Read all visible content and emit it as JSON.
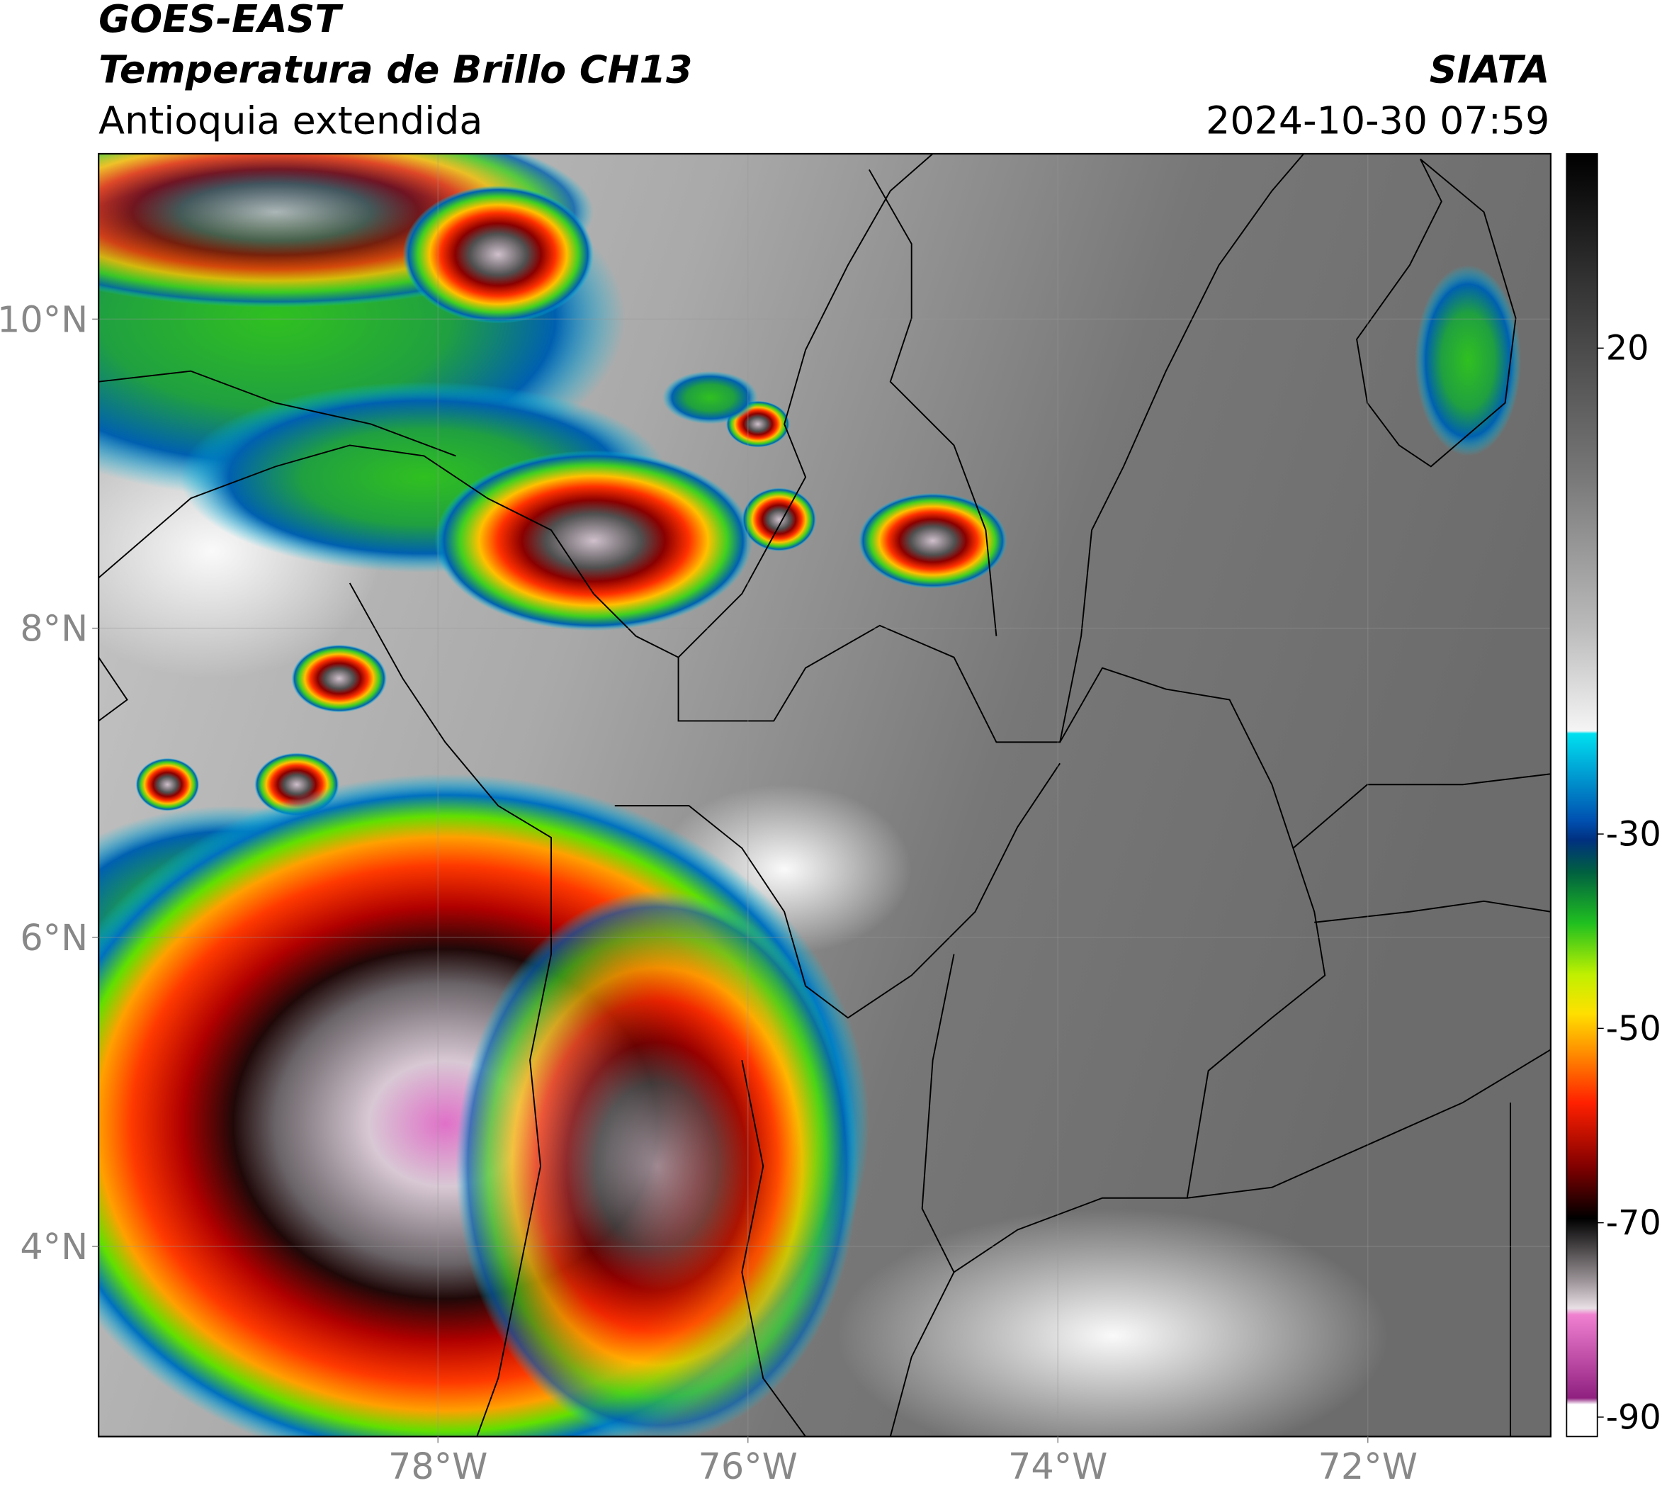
{
  "header": {
    "title": "GOES-EAST",
    "subtitle": "Temperatura de Brillo CH13",
    "region": "Antioquia extendida",
    "source": "SIATA",
    "timestamp": "2024-10-30 07:59"
  },
  "map": {
    "type": "map",
    "xlim": [
      -80.19,
      -70.82
    ],
    "ylim": [
      2.77,
      11.07
    ],
    "xticks": [
      {
        "value": -78,
        "label": "78°W"
      },
      {
        "value": -76,
        "label": "76°W"
      },
      {
        "value": -74,
        "label": "74°W"
      },
      {
        "value": -72,
        "label": "72°W"
      }
    ],
    "yticks": [
      {
        "value": 4,
        "label": "4°N"
      },
      {
        "value": 6,
        "label": "6°N"
      },
      {
        "value": 8,
        "label": "8°N"
      },
      {
        "value": 10,
        "label": "10°N"
      }
    ],
    "grid": true
  },
  "colorbar": {
    "clim": [
      -92,
      40
    ],
    "ticks": [
      20,
      -30,
      -50,
      -70,
      -90
    ]
  }
}
